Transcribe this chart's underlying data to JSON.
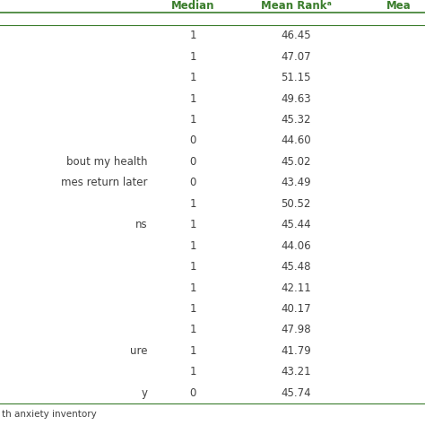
{
  "header": [
    "Median",
    "Mean Rankᵃ",
    "Mea"
  ],
  "rows": [
    {
      "label": "",
      "median": "1",
      "mean_rank": "46.45"
    },
    {
      "label": "",
      "median": "1",
      "mean_rank": "47.07"
    },
    {
      "label": "",
      "median": "1",
      "mean_rank": "51.15"
    },
    {
      "label": "",
      "median": "1",
      "mean_rank": "49.63"
    },
    {
      "label": "",
      "median": "1",
      "mean_rank": "45.32"
    },
    {
      "label": "",
      "median": "0",
      "mean_rank": "44.60"
    },
    {
      "label": "bout my health",
      "median": "0",
      "mean_rank": "45.02"
    },
    {
      "label": "mes return later",
      "median": "0",
      "mean_rank": "43.49"
    },
    {
      "label": "",
      "median": "1",
      "mean_rank": "50.52"
    },
    {
      "label": "ns",
      "median": "1",
      "mean_rank": "45.44"
    },
    {
      "label": "",
      "median": "1",
      "mean_rank": "44.06"
    },
    {
      "label": "",
      "median": "1",
      "mean_rank": "45.48"
    },
    {
      "label": "",
      "median": "1",
      "mean_rank": "42.11"
    },
    {
      "label": "",
      "median": "1",
      "mean_rank": "40.17"
    },
    {
      "label": "",
      "median": "1",
      "mean_rank": "47.98"
    },
    {
      "label": "ure",
      "median": "1",
      "mean_rank": "41.79"
    },
    {
      "label": "",
      "median": "1",
      "mean_rank": "43.21"
    },
    {
      "label": "y",
      "median": "0",
      "mean_rank": "45.74"
    }
  ],
  "footnote": "th anxiety inventory",
  "header_color": "#3a7d2c",
  "text_color": "#404040",
  "bg_color": "#ffffff",
  "line_color": "#3a7d2c",
  "header_fontsize": 8.5,
  "body_fontsize": 8.5,
  "footnote_fontsize": 7.5
}
